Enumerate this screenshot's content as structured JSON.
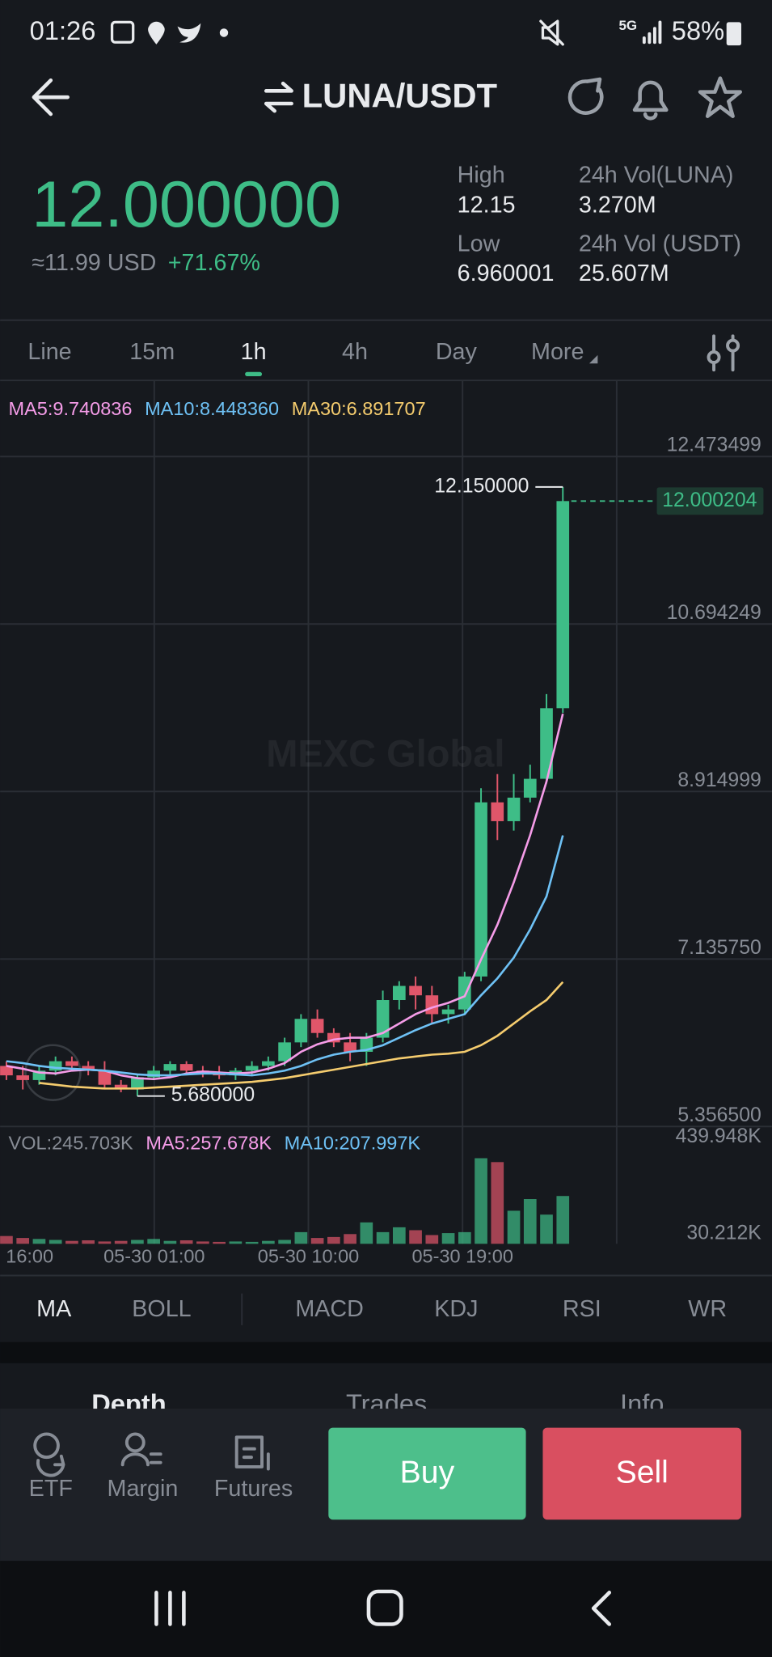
{
  "status_bar": {
    "time": "01:26",
    "network": "5G",
    "battery": "58%"
  },
  "header": {
    "pair": "LUNA/USDT"
  },
  "ticker": {
    "price": "12.000000",
    "usd": "≈11.99 USD",
    "change": "+71.67%",
    "stats": [
      {
        "label": "High",
        "value": "12.15"
      },
      {
        "label": "Low",
        "value": "6.960001"
      },
      {
        "label": "24h Vol(LUNA)",
        "value": "3.270M"
      },
      {
        "label": "24h Vol (USDT)",
        "value": "25.607M"
      }
    ]
  },
  "intervals": [
    "Line",
    "15m",
    "1h",
    "4h",
    "Day",
    "More"
  ],
  "chart_data": {
    "type": "candlestick",
    "watermark": "MEXC Global",
    "up_color": "#3ebd87",
    "down_color": "#e0566a",
    "open": [
      6.0,
      5.9,
      5.85,
      5.95,
      6.05,
      6.0,
      5.95,
      5.8,
      5.75,
      5.88,
      5.95,
      6.02,
      5.95,
      5.92,
      5.9,
      5.95,
      6.0,
      6.05,
      6.25,
      6.5,
      6.35,
      6.25,
      6.15,
      6.3,
      6.7,
      6.85,
      6.75,
      6.55,
      6.6,
      6.95,
      8.8,
      8.6,
      8.85,
      9.05,
      9.8
    ],
    "high": [
      6.05,
      6.0,
      6.0,
      6.1,
      6.1,
      6.05,
      6.05,
      5.85,
      5.9,
      6.0,
      6.05,
      6.05,
      6.0,
      6.0,
      5.98,
      6.05,
      6.1,
      6.3,
      6.55,
      6.6,
      6.4,
      6.35,
      6.35,
      6.8,
      6.9,
      6.95,
      6.85,
      6.65,
      7.0,
      8.95,
      9.1,
      9.1,
      9.2,
      9.95,
      12.15
    ],
    "low": [
      5.85,
      5.75,
      5.8,
      5.9,
      5.95,
      5.9,
      5.75,
      5.72,
      5.68,
      5.85,
      5.9,
      5.9,
      5.88,
      5.86,
      5.85,
      5.9,
      5.95,
      6.0,
      6.2,
      6.3,
      6.2,
      6.05,
      6.0,
      6.25,
      6.6,
      6.6,
      6.45,
      6.45,
      6.55,
      6.9,
      8.4,
      8.5,
      8.8,
      9.0,
      9.75
    ],
    "close": [
      5.9,
      5.85,
      5.95,
      6.05,
      6.0,
      5.95,
      5.8,
      5.75,
      5.88,
      5.95,
      6.02,
      5.95,
      5.92,
      5.9,
      5.95,
      6.0,
      6.05,
      6.25,
      6.5,
      6.35,
      6.25,
      6.15,
      6.3,
      6.7,
      6.85,
      6.75,
      6.55,
      6.6,
      6.95,
      8.8,
      8.6,
      8.85,
      9.05,
      9.8,
      12.000204
    ],
    "series": [
      {
        "name": "MA5",
        "legend": "MA5:9.740836",
        "color": "#f59ce8",
        "values": [
          6.0,
          5.97,
          5.93,
          5.92,
          5.95,
          5.96,
          5.95,
          5.9,
          5.87,
          5.86,
          5.88,
          5.92,
          5.94,
          5.93,
          5.92,
          5.93,
          5.97,
          6.03,
          6.15,
          6.23,
          6.28,
          6.3,
          6.3,
          6.35,
          6.45,
          6.55,
          6.62,
          6.67,
          6.74,
          7.13,
          7.5,
          7.95,
          8.45,
          9.02,
          9.740836
        ]
      },
      {
        "name": "MA10",
        "legend": "MA10:8.448360",
        "color": "#6ec1f5",
        "values": [
          6.05,
          6.03,
          6.0,
          5.98,
          5.97,
          5.96,
          5.95,
          5.93,
          5.91,
          5.9,
          5.9,
          5.91,
          5.92,
          5.92,
          5.91,
          5.9,
          5.92,
          5.95,
          6.0,
          6.07,
          6.12,
          6.15,
          6.17,
          6.22,
          6.3,
          6.38,
          6.45,
          6.5,
          6.55,
          6.75,
          6.93,
          7.15,
          7.45,
          7.8,
          8.44836
        ]
      },
      {
        "name": "MA30",
        "legend": "MA30:6.891707",
        "color": "#f5cc6e",
        "values": [
          null,
          null,
          5.82,
          5.8,
          5.78,
          5.77,
          5.76,
          5.76,
          5.76,
          5.77,
          5.78,
          5.79,
          5.8,
          5.81,
          5.82,
          5.83,
          5.85,
          5.87,
          5.9,
          5.93,
          5.96,
          5.99,
          6.02,
          6.05,
          6.08,
          6.1,
          6.12,
          6.13,
          6.15,
          6.22,
          6.32,
          6.45,
          6.58,
          6.7,
          6.891707
        ]
      }
    ],
    "ylim": [
      5.3565,
      12.473499
    ],
    "yticks": [
      {
        "value": 5.3565,
        "label": "5.356500"
      },
      {
        "value": 7.13575,
        "label": "7.135750"
      },
      8.914999,
      10.694249,
      12.473499
    ],
    "high_label": {
      "value": 12.15,
      "label": "12.150000"
    },
    "low_label": {
      "value": 5.68,
      "label": "5.680000"
    },
    "last_price": 12.000204,
    "x_labels": [
      "16:00",
      "05-30 01:00",
      "05-30 10:00",
      "05-30 19:00"
    ],
    "volume": {
      "legend": [
        {
          "text": "VOL:245.703K",
          "color": "#878c95"
        },
        {
          "text": "MA5:257.678K",
          "color": "#f59ce8"
        },
        {
          "text": "MA10:207.997K",
          "color": "#6ec1f5"
        }
      ],
      "values": [
        40,
        30,
        25,
        20,
        15,
        18,
        12,
        15,
        20,
        25,
        15,
        18,
        12,
        10,
        12,
        10,
        15,
        20,
        60,
        30,
        35,
        50,
        110,
        60,
        85,
        70,
        45,
        55,
        60,
        440,
        420,
        170,
        230,
        150,
        245.703
      ],
      "ylim": [
        0,
        440
      ],
      "yticks": [
        {
          "value": 30.212,
          "label": "30.212K"
        },
        {
          "value": 439.948,
          "label": "439.948K"
        }
      ]
    }
  },
  "indicator_tabs": [
    "MA",
    "BOLL",
    "MACD",
    "KDJ",
    "RSI",
    "WR"
  ],
  "panel_tabs": [
    "Depth",
    "Trades",
    "Info"
  ],
  "bottom_bar": {
    "items": [
      "ETF",
      "Margin",
      "Futures"
    ],
    "buy": "Buy",
    "sell": "Sell"
  }
}
